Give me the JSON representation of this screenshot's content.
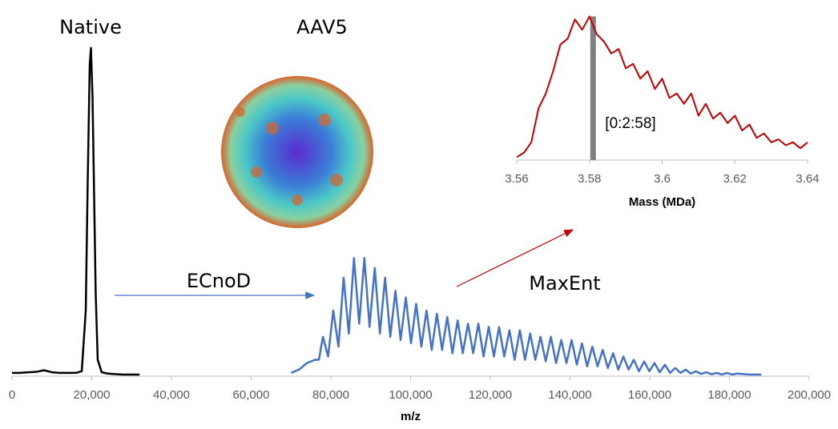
{
  "chart_data": [
    {
      "type": "line",
      "xlabel": "m/z",
      "xlim": [
        0,
        200000
      ],
      "xticks": [
        0,
        {
          "value": 20000,
          "label": "20,000"
        },
        {
          "value": 40000,
          "label": "40,000"
        },
        {
          "value": 60000,
          "label": "60,000"
        },
        {
          "value": 80000,
          "label": "80,000"
        },
        {
          "value": 100000,
          "label": "100,000"
        },
        {
          "value": 120000,
          "label": "120,000"
        },
        {
          "value": 140000,
          "label": "140,000"
        },
        {
          "value": 160000,
          "label": "160,000"
        },
        {
          "value": 180000,
          "label": "180,000"
        },
        {
          "value": 200000,
          "label": "200,000"
        }
      ],
      "ylim": [
        0,
        100
      ],
      "annotations": [
        "Native",
        "AAV5",
        "ECnoD",
        "MaxEnt"
      ],
      "series": [
        {
          "color": "#000000",
          "x": [
            0,
            2000,
            4000,
            6000,
            8000,
            10000,
            12000,
            14000,
            16000,
            17500,
            18500,
            19000,
            19500,
            19800,
            20200,
            20600,
            21000,
            21500,
            22500,
            24000,
            26000,
            28000,
            30000,
            32000
          ],
          "values": [
            1,
            1,
            1.2,
            1.3,
            1.8,
            1.2,
            1,
            1,
            1,
            1.5,
            20,
            60,
            95,
            100,
            85,
            55,
            25,
            5,
            1.2,
            0.8,
            0.6,
            0.5,
            0.5,
            0.5
          ]
        },
        {
          "color": "#4472c4",
          "x": [
            70000,
            72000,
            74000,
            76000,
            77000,
            78000,
            79300,
            80600,
            81900,
            83200,
            84500,
            85800,
            87100,
            88400,
            89700,
            91000,
            92300,
            93600,
            94900,
            96200,
            97500,
            98800,
            100100,
            101400,
            102700,
            104000,
            105300,
            106600,
            107900,
            109200,
            110500,
            111800,
            113100,
            114400,
            115700,
            117000,
            118300,
            119600,
            120900,
            122200,
            123500,
            124800,
            126100,
            127400,
            128700,
            130000,
            131300,
            132600,
            133900,
            135200,
            136500,
            137800,
            139100,
            140400,
            141700,
            143000,
            144300,
            145600,
            146900,
            148200,
            149500,
            150800,
            152100,
            153400,
            154700,
            156000,
            157300,
            158600,
            159900,
            161200,
            162500,
            163800,
            165100,
            166400,
            167700,
            169000,
            170300,
            171600,
            172900,
            174200,
            175500,
            176800,
            178100,
            179400,
            180700,
            182000,
            185000,
            188000
          ],
          "values": [
            1,
            2,
            4,
            5,
            5,
            12,
            6,
            20,
            9,
            30,
            13,
            36,
            16,
            36,
            15,
            33,
            13,
            30,
            12,
            26,
            11,
            24,
            10,
            22,
            9,
            20,
            8,
            19,
            8,
            18,
            7,
            17,
            7,
            16,
            7,
            16,
            6,
            15,
            6,
            15,
            6,
            14,
            5,
            14,
            5,
            13,
            5,
            12,
            4.5,
            12,
            4,
            11,
            4,
            11,
            3.5,
            10,
            3,
            9,
            3,
            8,
            2.5,
            7,
            2,
            6,
            2,
            5,
            1.5,
            4.5,
            1.5,
            4,
            1.2,
            3.5,
            1,
            2.5,
            1,
            2,
            0.8,
            1.5,
            0.7,
            1.2,
            0.6,
            1,
            0.5,
            1,
            0.5,
            0.8,
            0.5,
            0.5
          ]
        }
      ]
    },
    {
      "type": "line",
      "xlabel": "Mass (MDa)",
      "xlim": [
        3.56,
        3.64
      ],
      "xticks": [
        3.56,
        3.58,
        3.6,
        3.62,
        3.64
      ],
      "ylim": [
        0,
        100
      ],
      "annotations": [
        "[0:2:58]"
      ],
      "marker": {
        "x": 3.581,
        "value": 97,
        "color": "#808080"
      },
      "series": [
        {
          "color": "#c00000",
          "x": [
            3.56,
            3.562,
            3.564,
            3.566,
            3.568,
            3.57,
            3.572,
            3.574,
            3.576,
            3.578,
            3.58,
            3.582,
            3.584,
            3.586,
            3.588,
            3.59,
            3.592,
            3.594,
            3.596,
            3.598,
            3.6,
            3.602,
            3.604,
            3.606,
            3.608,
            3.61,
            3.612,
            3.614,
            3.616,
            3.618,
            3.62,
            3.622,
            3.624,
            3.626,
            3.628,
            3.63,
            3.632,
            3.634,
            3.636,
            3.638,
            3.64
          ],
          "values": [
            2,
            5,
            12,
            35,
            45,
            60,
            78,
            82,
            95,
            88,
            97,
            85,
            80,
            72,
            75,
            62,
            65,
            55,
            60,
            48,
            55,
            42,
            45,
            38,
            45,
            30,
            38,
            28,
            32,
            25,
            30,
            20,
            24,
            15,
            18,
            12,
            14,
            10,
            12,
            8,
            12
          ]
        }
      ]
    }
  ]
}
